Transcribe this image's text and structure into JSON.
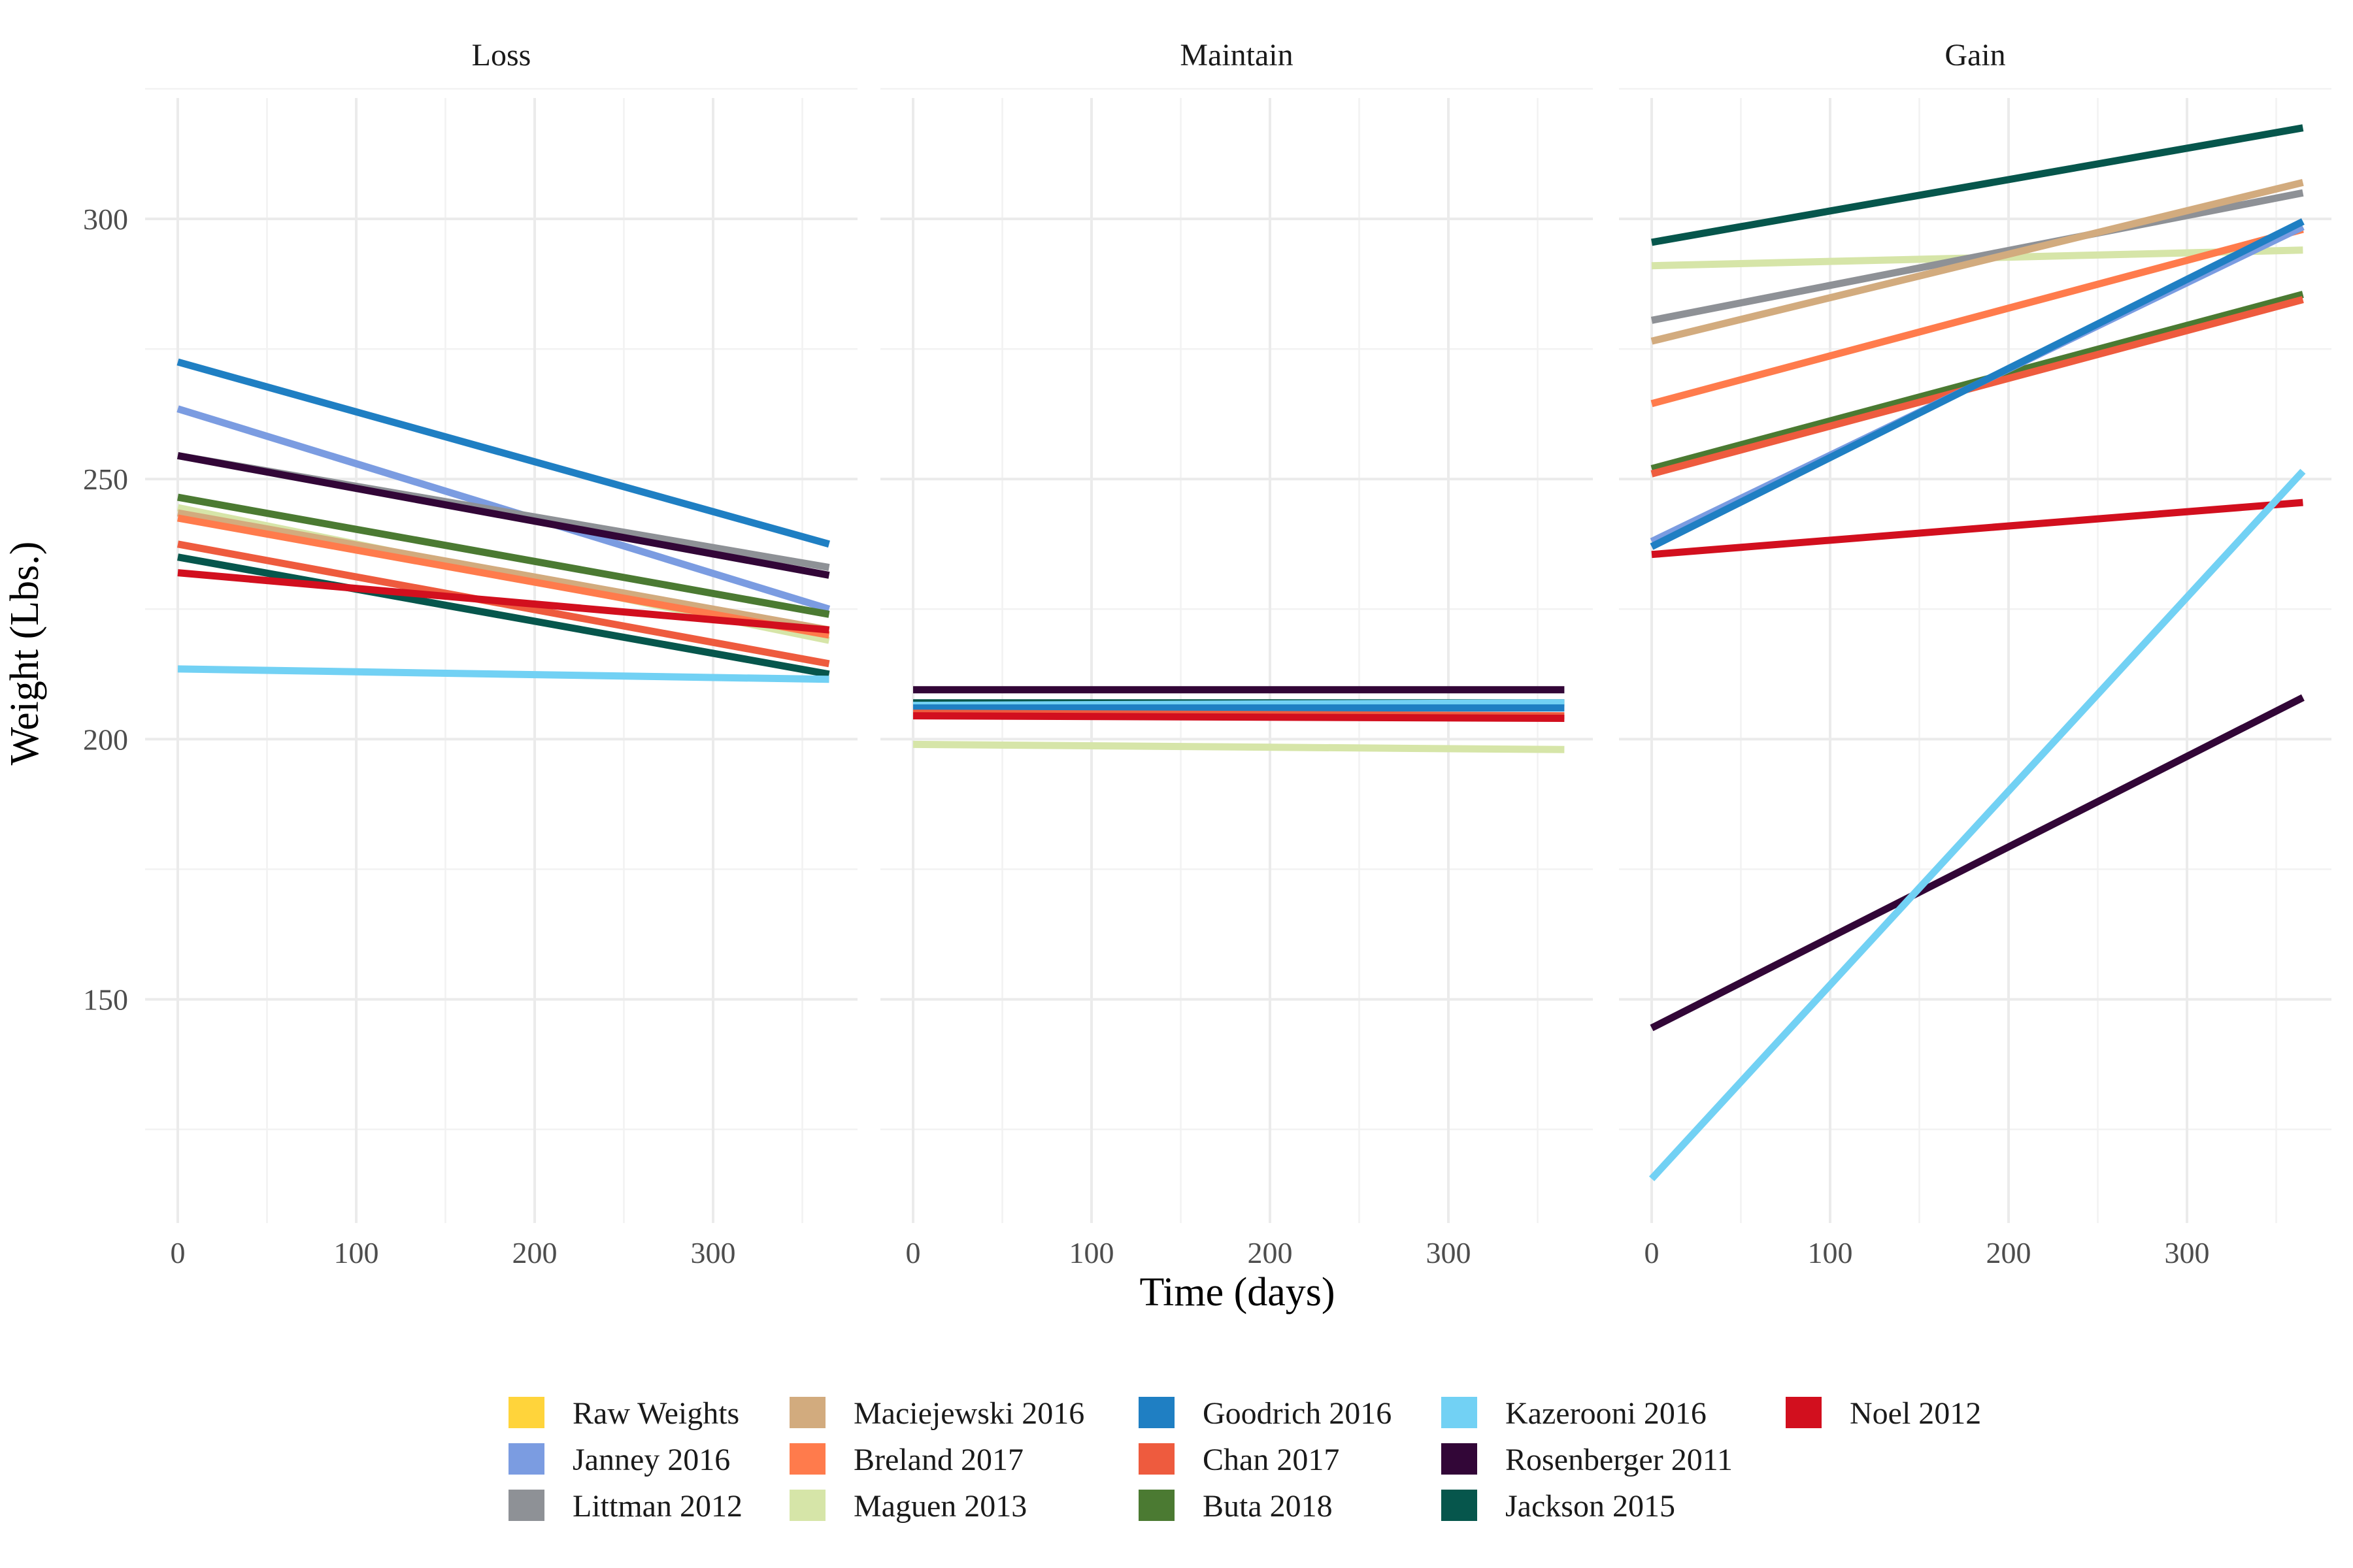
{
  "chart_data": {
    "type": "line",
    "xlabel": "Time (days)",
    "ylabel": "Weight (Lbs.)",
    "xlim": [
      0,
      365
    ],
    "ylim": [
      107,
      326
    ],
    "x_ticks": [
      0,
      100,
      200,
      300
    ],
    "y_ticks": [
      150,
      200,
      250,
      300
    ],
    "grid": true,
    "legend_position": "bottom",
    "facets": [
      {
        "title": "Loss",
        "series": [
          {
            "name": "Goodrich 2016",
            "x": [
              0,
              365
            ],
            "y": [
              272.5,
              237.5
            ]
          },
          {
            "name": "Janney 2016",
            "x": [
              0,
              365
            ],
            "y": [
              263.5,
              225.0
            ]
          },
          {
            "name": "Littman 2012",
            "x": [
              0,
              365
            ],
            "y": [
              254.5,
              233.0
            ]
          },
          {
            "name": "Rosenberger 2011",
            "x": [
              0,
              365
            ],
            "y": [
              254.5,
              231.5
            ]
          },
          {
            "name": "Buta 2018",
            "x": [
              0,
              365
            ],
            "y": [
              246.5,
              224.0
            ]
          },
          {
            "name": "Maguen 2013",
            "x": [
              0,
              365
            ],
            "y": [
              244.5,
              219.0
            ]
          },
          {
            "name": "Maciejewski 2016",
            "x": [
              0,
              365
            ],
            "y": [
              243.5,
              221.0
            ]
          },
          {
            "name": "Breland 2017",
            "x": [
              0,
              365
            ],
            "y": [
              242.5,
              220.0
            ]
          },
          {
            "name": "Chan 2017",
            "x": [
              0,
              365
            ],
            "y": [
              237.5,
              214.5
            ]
          },
          {
            "name": "Jackson 2015",
            "x": [
              0,
              365
            ],
            "y": [
              235.0,
              212.5
            ]
          },
          {
            "name": "Noel 2012",
            "x": [
              0,
              365
            ],
            "y": [
              232.0,
              221.0
            ]
          },
          {
            "name": "Kazerooni 2016",
            "x": [
              0,
              365
            ],
            "y": [
              213.5,
              211.5
            ]
          }
        ]
      },
      {
        "title": "Maintain",
        "series": [
          {
            "name": "Rosenberger 2011",
            "x": [
              0,
              365
            ],
            "y": [
              209.5,
              209.5
            ]
          },
          {
            "name": "Jackson 2015",
            "x": [
              0,
              365
            ],
            "y": [
              207.0,
              207.0
            ]
          },
          {
            "name": "Kazerooni 2016",
            "x": [
              0,
              365
            ],
            "y": [
              206.5,
              207.0
            ]
          },
          {
            "name": "Goodrich 2016",
            "x": [
              0,
              365
            ],
            "y": [
              206.0,
              206.0
            ]
          },
          {
            "name": "Chan 2017",
            "x": [
              0,
              365
            ],
            "y": [
              205.0,
              204.5
            ]
          },
          {
            "name": "Noel 2012",
            "x": [
              0,
              365
            ],
            "y": [
              204.5,
              204.0
            ]
          },
          {
            "name": "Maguen 2013",
            "x": [
              0,
              365
            ],
            "y": [
              199.0,
              198.0
            ]
          }
        ]
      },
      {
        "title": "Gain",
        "series": [
          {
            "name": "Jackson 2015",
            "x": [
              0,
              365
            ],
            "y": [
              295.5,
              317.5
            ]
          },
          {
            "name": "Maguen 2013",
            "x": [
              0,
              365
            ],
            "y": [
              291.0,
              294.0
            ]
          },
          {
            "name": "Littman 2012",
            "x": [
              0,
              365
            ],
            "y": [
              280.5,
              305.0
            ]
          },
          {
            "name": "Maciejewski 2016",
            "x": [
              0,
              365
            ],
            "y": [
              276.5,
              307.0
            ]
          },
          {
            "name": "Breland 2017",
            "x": [
              0,
              365
            ],
            "y": [
              264.5,
              298.0
            ]
          },
          {
            "name": "Buta 2018",
            "x": [
              0,
              365
            ],
            "y": [
              252.0,
              285.5
            ]
          },
          {
            "name": "Chan 2017",
            "x": [
              0,
              365
            ],
            "y": [
              251.0,
              284.5
            ]
          },
          {
            "name": "Janney 2016",
            "x": [
              0,
              365
            ],
            "y": [
              238.0,
              298.5
            ]
          },
          {
            "name": "Goodrich 2016",
            "x": [
              0,
              365
            ],
            "y": [
              237.0,
              299.5
            ]
          },
          {
            "name": "Noel 2012",
            "x": [
              0,
              365
            ],
            "y": [
              235.5,
              245.5
            ]
          },
          {
            "name": "Rosenberger 2011",
            "x": [
              0,
              365
            ],
            "y": [
              144.5,
              208.0
            ]
          },
          {
            "name": "Kazerooni 2016",
            "x": [
              0,
              365
            ],
            "y": [
              115.5,
              251.5
            ]
          }
        ]
      }
    ],
    "legend": [
      {
        "name": "Raw Weights",
        "color": "#FFD43B"
      },
      {
        "name": "Janney 2016",
        "color": "#7B9CE1"
      },
      {
        "name": "Littman 2012",
        "color": "#8E9196"
      },
      {
        "name": "Maciejewski 2016",
        "color": "#D2AB7E"
      },
      {
        "name": "Breland 2017",
        "color": "#FF7B4C"
      },
      {
        "name": "Maguen 2013",
        "color": "#D6E5A8"
      },
      {
        "name": "Goodrich 2016",
        "color": "#1F7FC3"
      },
      {
        "name": "Chan 2017",
        "color": "#EE5B3E"
      },
      {
        "name": "Buta 2018",
        "color": "#4B7A32"
      },
      {
        "name": "Kazerooni 2016",
        "color": "#72D1F4"
      },
      {
        "name": "Rosenberger 2011",
        "color": "#320637"
      },
      {
        "name": "Jackson 2015",
        "color": "#06564C"
      },
      {
        "name": "Noel 2012",
        "color": "#D20F1E"
      }
    ]
  }
}
